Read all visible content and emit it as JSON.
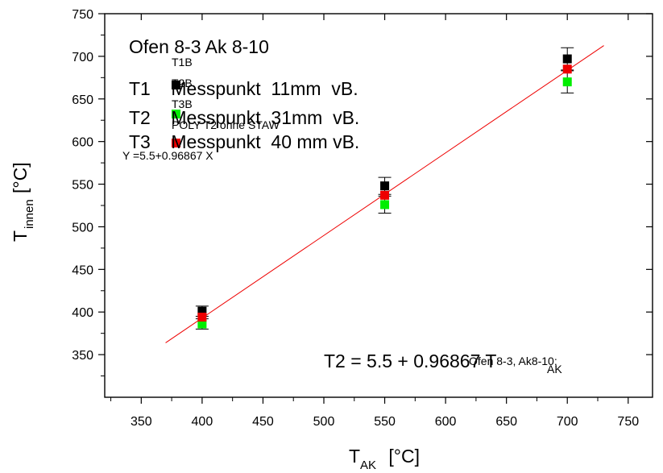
{
  "chart_data": {
    "type": "scatter",
    "title": "Ofen 8-3  Ak 8-10",
    "xlabel": {
      "main": "T",
      "sub": "AK",
      "unit": " [°C]"
    },
    "ylabel": {
      "main": "T",
      "sub": "innen",
      "unit": "[°C]"
    },
    "xlim": [
      320,
      770
    ],
    "ylim": [
      300,
      750
    ],
    "xticks": [
      350,
      400,
      450,
      500,
      550,
      600,
      650,
      700,
      750
    ],
    "yticks": [
      350,
      400,
      450,
      500,
      550,
      600,
      650,
      700,
      750
    ],
    "grid": false,
    "legend_placement": "top-left",
    "series": [
      {
        "name": "T1",
        "legend_tag": "T1B",
        "legend_text": "T1    Messpunkt  11mm  vB.",
        "color": "#000000",
        "points": [
          {
            "x": 400,
            "y": 401,
            "err": 6
          },
          {
            "x": 550,
            "y": 548,
            "err": 10
          },
          {
            "x": 700,
            "y": 697,
            "err": 13
          }
        ]
      },
      {
        "name": "T2",
        "legend_tag": "T2B",
        "legend_text": "T2    Messpunkt  31mm  vB.",
        "color": "#00ee00",
        "points": [
          {
            "x": 400,
            "y": 386,
            "err": 6
          },
          {
            "x": 550,
            "y": 526,
            "err": 10
          },
          {
            "x": 700,
            "y": 670,
            "err": 13
          }
        ]
      },
      {
        "name": "T3",
        "legend_tag": "T3B",
        "legend_text": "T3    Messpunkt  40 mm vB.",
        "color": "#ee0000",
        "points": [
          {
            "x": 400,
            "y": 394,
            "err": 0
          },
          {
            "x": 550,
            "y": 537,
            "err": 0
          },
          {
            "x": 700,
            "y": 685,
            "err": 0
          }
        ]
      }
    ],
    "fit": {
      "color": "#ee0000",
      "intercept": 5.5,
      "slope": 0.96867,
      "x_range": [
        370,
        730
      ],
      "label_overlay": "POLY T2 ohne STAW",
      "label_eq": "Y =5.5+0.96867 X",
      "annotation_main": "T2 = 5.5 + 0.96867 T",
      "annotation_sub": "AK",
      "annotation_overlap": "Ofen 8-3, Ak8-10;"
    }
  }
}
